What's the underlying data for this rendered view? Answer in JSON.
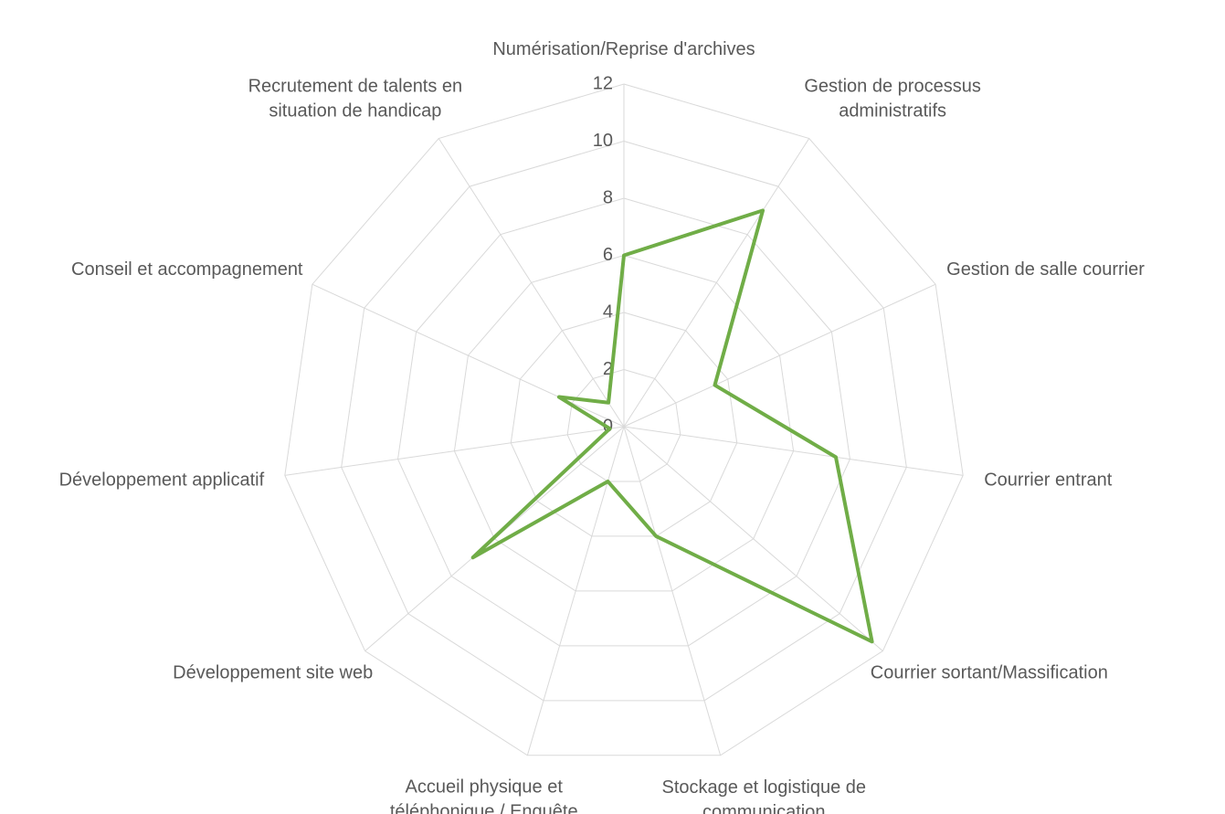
{
  "chart_data": {
    "type": "radar",
    "categories": [
      "Numérisation/Reprise d'archives",
      "Gestion de processus administratifs",
      "Gestion de salle courrier",
      "Courrier entrant",
      "Courrier sortant/Massification",
      "Stockage et logistique de communication",
      "Accueil physique et téléphonique / Enquête téléphonique",
      "Développement site web",
      "Développement applicatif",
      "Conseil et accompagnement",
      "Recrutement de talents en situation de handicap"
    ],
    "values": [
      6,
      9,
      3.5,
      7.5,
      11.5,
      4,
      2,
      7,
      0.5,
      2.5,
      1
    ],
    "color": "#70ad47",
    "ylim": [
      0,
      12
    ],
    "yticks": [
      0,
      2,
      4,
      6,
      8,
      10,
      12
    ],
    "grid": true
  }
}
